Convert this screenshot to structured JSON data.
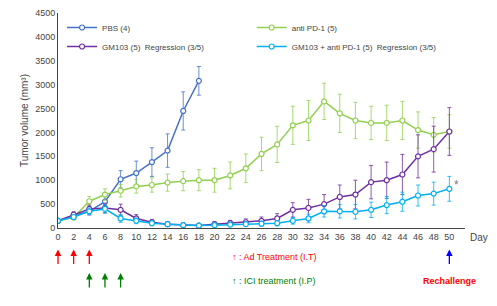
{
  "chart_data": {
    "type": "line",
    "ylabel": "Tumor volume (mm³)",
    "xlabel": "Day",
    "xlim": [
      0,
      52
    ],
    "ylim": [
      0,
      4500
    ],
    "yticks": [
      0,
      500,
      1000,
      1500,
      2000,
      2500,
      3000,
      3500,
      4000,
      4500
    ],
    "xticks": [
      0,
      2,
      4,
      6,
      8,
      10,
      12,
      14,
      16,
      18,
      20,
      22,
      24,
      26,
      28,
      30,
      32,
      34,
      36,
      38,
      40,
      42,
      44,
      46,
      48,
      50
    ],
    "grid": false,
    "legend": "upper left",
    "marker": "circle",
    "series": [
      {
        "name": "PBS (4)",
        "color": "#4472C4",
        "x": [
          0,
          2,
          4,
          6,
          8,
          10,
          12,
          14,
          16,
          18
        ],
        "values": [
          150,
          260,
          350,
          550,
          1020,
          1150,
          1380,
          1620,
          2450,
          3080
        ],
        "yerr": [
          30,
          50,
          80,
          120,
          180,
          250,
          300,
          350,
          400,
          300
        ]
      },
      {
        "name": "anti PD-1 (5)",
        "color": "#92D050",
        "x": [
          0,
          2,
          4,
          6,
          8,
          10,
          12,
          14,
          16,
          18,
          20,
          22,
          24,
          26,
          28,
          30,
          32,
          34,
          36,
          38,
          40,
          42,
          44,
          46,
          48,
          50
        ],
        "values": [
          150,
          220,
          560,
          700,
          780,
          870,
          900,
          950,
          980,
          1000,
          1000,
          1100,
          1250,
          1550,
          1750,
          2150,
          2250,
          2650,
          2400,
          2250,
          2200,
          2200,
          2250,
          2050,
          1950,
          2020
        ],
        "yerr": [
          30,
          50,
          100,
          120,
          130,
          140,
          150,
          180,
          200,
          220,
          250,
          280,
          300,
          350,
          380,
          400,
          420,
          380,
          400,
          380,
          350,
          370,
          400,
          380,
          360,
          350
        ]
      },
      {
        "name": "GM103 (5)  Regression (3/5)",
        "color": "#7030A0",
        "x": [
          0,
          2,
          4,
          6,
          8,
          10,
          12,
          14,
          16,
          18,
          20,
          22,
          24,
          26,
          28,
          30,
          32,
          34,
          36,
          38,
          40,
          42,
          44,
          46,
          48,
          50
        ],
        "values": [
          150,
          280,
          400,
          420,
          380,
          200,
          120,
          80,
          60,
          50,
          80,
          100,
          120,
          150,
          200,
          380,
          420,
          500,
          650,
          700,
          960,
          1000,
          1120,
          1500,
          1650,
          2020
        ],
        "yerr": [
          30,
          60,
          80,
          100,
          120,
          80,
          60,
          50,
          40,
          40,
          50,
          60,
          70,
          80,
          100,
          150,
          180,
          200,
          250,
          300,
          350,
          380,
          420,
          450,
          480,
          500
        ]
      },
      {
        "name": "GM103 + anti PD-1 (5)  Regression (3/5)",
        "color": "#00B0F0",
        "x": [
          0,
          2,
          4,
          6,
          8,
          10,
          12,
          14,
          16,
          18,
          20,
          22,
          24,
          26,
          28,
          30,
          32,
          34,
          36,
          38,
          40,
          42,
          44,
          46,
          48,
          50
        ],
        "values": [
          150,
          230,
          350,
          400,
          200,
          150,
          100,
          80,
          60,
          50,
          60,
          70,
          80,
          90,
          100,
          150,
          200,
          350,
          350,
          340,
          380,
          480,
          550,
          680,
          720,
          820
        ],
        "yerr": [
          30,
          50,
          70,
          90,
          80,
          60,
          50,
          40,
          30,
          30,
          35,
          40,
          45,
          50,
          55,
          70,
          90,
          120,
          140,
          150,
          160,
          180,
          200,
          220,
          240,
          260
        ]
      }
    ],
    "annotations": [
      {
        "text": "*",
        "x": 50,
        "y": 900,
        "color": "gray"
      }
    ],
    "arrows": [
      {
        "label": "↑ : Ad Treatment (I.T)",
        "label_x": 22,
        "color": "red",
        "x": [
          0,
          2,
          4
        ]
      },
      {
        "label": "↑ : ICI treatment (I.P)",
        "label_x": 22,
        "color": "green",
        "x": [
          4,
          6,
          8
        ]
      },
      {
        "label": "Rechallenge",
        "label_x": 50,
        "color": "blue",
        "label_color": "red",
        "x": [
          50
        ]
      }
    ]
  }
}
